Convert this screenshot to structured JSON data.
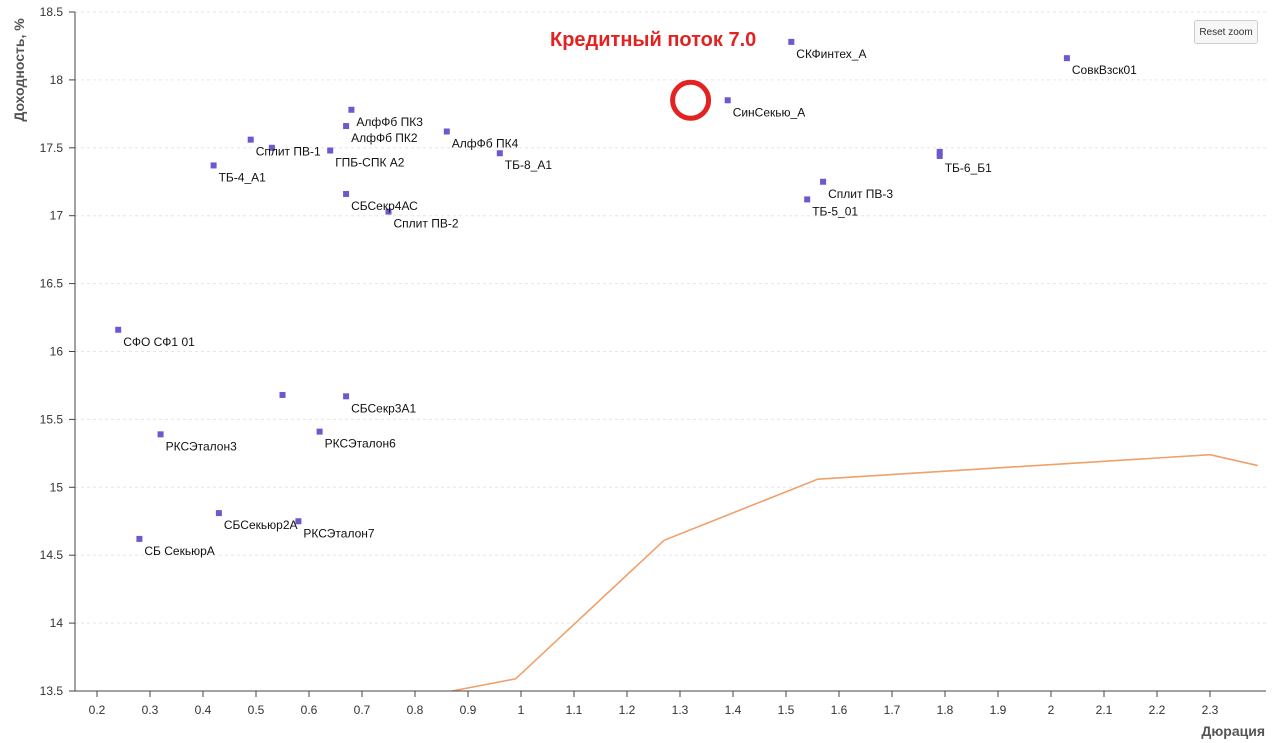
{
  "chart_data": {
    "type": "scatter",
    "title": "",
    "annotation": "Кредитный поток 7.0",
    "xlabel": "Дюрация",
    "ylabel": "Доходность, %",
    "xlim": [
      0.15,
      2.39
    ],
    "ylim": [
      13.5,
      18.5
    ],
    "x_ticks": [
      0.2,
      0.3,
      0.4,
      0.5,
      0.6,
      0.7,
      0.8,
      0.9,
      1,
      1.1,
      1.2,
      1.3,
      1.4,
      1.5,
      1.6,
      1.7,
      1.8,
      1.9,
      2,
      2.1,
      2.2,
      2.3
    ],
    "y_ticks": [
      13.5,
      14,
      14.5,
      15,
      15.5,
      16,
      16.5,
      17,
      17.5,
      18,
      18.5
    ],
    "grid": "horizontal",
    "point_color": "#6a5acd",
    "curve_color": "#f0a06a",
    "highlight_color": "#e32222",
    "highlight_point": {
      "x": 1.32,
      "y": 17.85
    },
    "points": [
      {
        "label": "СКФинтех_А",
        "x": 1.51,
        "y": 18.28
      },
      {
        "label": "СовкВзск01",
        "x": 2.03,
        "y": 18.16
      },
      {
        "label": "СинСекью_А",
        "x": 1.39,
        "y": 17.85
      },
      {
        "label": "АлфФб ПК3",
        "x": 0.68,
        "y": 17.78
      },
      {
        "label": "АлфФб ПК2",
        "x": 0.67,
        "y": 17.66
      },
      {
        "label": "АлфФб ПК4",
        "x": 0.86,
        "y": 17.62
      },
      {
        "label": "Сплит ПВ-1",
        "x": 0.49,
        "y": 17.56
      },
      {
        "label": "",
        "x": 0.53,
        "y": 17.5
      },
      {
        "label": "ГПБ-СПК А2",
        "x": 0.64,
        "y": 17.48
      },
      {
        "label": "ТБ-8_А1",
        "x": 0.96,
        "y": 17.46
      },
      {
        "label": "",
        "x": 1.79,
        "y": 17.47
      },
      {
        "label": "ТБ-6_Б1",
        "x": 1.79,
        "y": 17.44
      },
      {
        "label": "ТБ-4_А1",
        "x": 0.42,
        "y": 17.37
      },
      {
        "label": "Сплит ПВ-3",
        "x": 1.57,
        "y": 17.25
      },
      {
        "label": "СБСекр4АС",
        "x": 0.67,
        "y": 17.16
      },
      {
        "label": "ТБ-5_01",
        "x": 1.54,
        "y": 17.12
      },
      {
        "label": "Сплит ПВ-2",
        "x": 0.75,
        "y": 17.03
      },
      {
        "label": "СФО СФ1 01",
        "x": 0.24,
        "y": 16.16
      },
      {
        "label": "",
        "x": 0.55,
        "y": 15.68
      },
      {
        "label": "СБСекр3А1",
        "x": 0.67,
        "y": 15.67
      },
      {
        "label": "РКСЭталон6",
        "x": 0.62,
        "y": 15.41
      },
      {
        "label": "РКСЭталон3",
        "x": 0.32,
        "y": 15.39
      },
      {
        "label": "СБСекьюр2А",
        "x": 0.43,
        "y": 14.81
      },
      {
        "label": "РКСЭталон7",
        "x": 0.58,
        "y": 14.75
      },
      {
        "label": "СБ СекьюрА",
        "x": 0.28,
        "y": 14.62
      }
    ],
    "curve": [
      {
        "x": 0.87,
        "y": 13.5
      },
      {
        "x": 0.99,
        "y": 13.59
      },
      {
        "x": 1.27,
        "y": 14.61
      },
      {
        "x": 1.56,
        "y": 15.06
      },
      {
        "x": 2.3,
        "y": 15.24
      },
      {
        "x": 2.39,
        "y": 15.16
      }
    ]
  },
  "controls": {
    "reset_zoom_label": "Reset zoom"
  }
}
